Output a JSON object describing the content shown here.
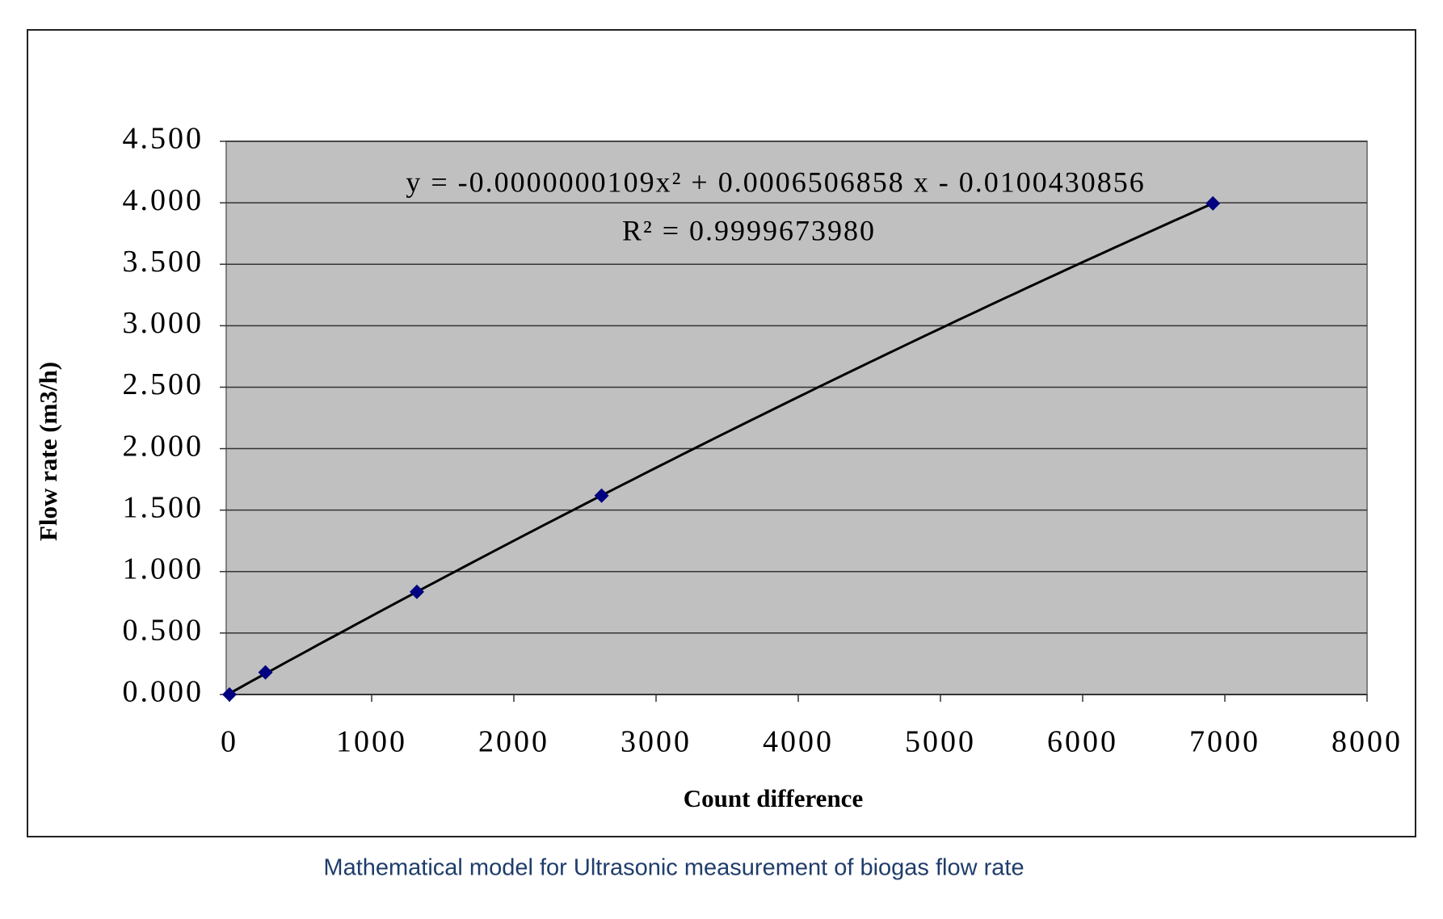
{
  "chart_data": {
    "type": "scatter",
    "caption": "Mathematical model for Ultrasonic measurement of biogas flow rate",
    "x_label": "Count difference",
    "y_label": "Flow rate (m3/h)",
    "equation": "y = -0.0000000109x² + 0.0006506858 x - 0.0100430856",
    "r_squared": "R² = 0.9999673980",
    "x": [
      0,
      253,
      1318,
      2617,
      6916
    ],
    "series": [
      {
        "name": "Flow rate",
        "color": "#000080",
        "values": [
          0,
          0.18,
          0.835,
          1.618,
          3.995
        ]
      }
    ],
    "trendline": {
      "type": "polynomial",
      "order": 2,
      "color": "#000000"
    },
    "xlim": [
      0,
      8000
    ],
    "xticks": [
      0,
      1000,
      2000,
      3000,
      4000,
      5000,
      6000,
      7000,
      8000
    ],
    "ylim": [
      0,
      4.5
    ],
    "yticks": [
      {
        "value": 0,
        "label": "0.000"
      },
      {
        "value": 0.5,
        "label": "0.500"
      },
      {
        "value": 1,
        "label": "1.000"
      },
      {
        "value": 1.5,
        "label": "1.500"
      },
      {
        "value": 2,
        "label": "2.000"
      },
      {
        "value": 2.5,
        "label": "2.500"
      },
      {
        "value": 3,
        "label": "3.000"
      },
      {
        "value": 3.5,
        "label": "3.500"
      },
      {
        "value": 4,
        "label": "4.000"
      },
      {
        "value": 4.5,
        "label": "4.500"
      }
    ],
    "grid": true,
    "plot_background": "#c0c0c0"
  }
}
